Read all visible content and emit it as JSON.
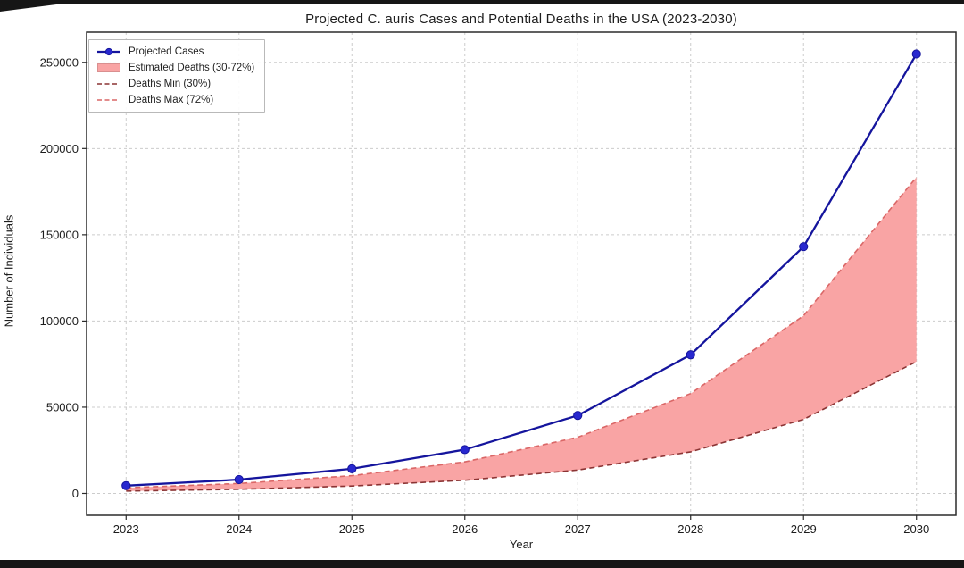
{
  "screen": {
    "background": "#ffffff",
    "edge_artifact_color": "#161616"
  },
  "chart_data": {
    "type": "line",
    "title": "Projected C. auris Cases and Potential Deaths in the USA (2023-2030)",
    "xlabel": "Year",
    "ylabel": "Number of Individuals",
    "x": [
      2023,
      2024,
      2025,
      2026,
      2027,
      2028,
      2029,
      2030
    ],
    "series": [
      {
        "name": "Projected Cases",
        "style": "solid-markers",
        "color": "#15159d",
        "marker_color": "#2828cf",
        "values": [
          4500,
          8000,
          14300,
          25400,
          45200,
          80400,
          143100,
          254800
        ]
      },
      {
        "name": "Deaths Min (30%)",
        "style": "dashed",
        "color": "#8b3434",
        "values": [
          1350,
          2400,
          4290,
          7620,
          13560,
          24120,
          42930,
          76440
        ]
      },
      {
        "name": "Deaths Max (72%)",
        "style": "dashed",
        "color": "#da6767",
        "values": [
          3240,
          5760,
          10300,
          18290,
          32540,
          57890,
          103030,
          183460
        ]
      }
    ],
    "band": {
      "name": "Estimated Deaths (30-72%)",
      "fill": "#f9a4a4",
      "edge": "#d98f8f",
      "lower_series": 1,
      "upper_series": 2
    },
    "legend": {
      "position": "upper-left",
      "entries": [
        "Projected Cases",
        "Estimated Deaths (30-72%)",
        "Deaths Min (30%)",
        "Deaths Max (72%)"
      ]
    },
    "xticks": [
      "2023",
      "2024",
      "2025",
      "2026",
      "2027",
      "2028",
      "2029",
      "2030"
    ],
    "yticks": [
      0,
      50000,
      100000,
      150000,
      200000,
      250000
    ],
    "xlim": [
      2022.65,
      2030.35
    ],
    "ylim": [
      -12700,
      267500
    ],
    "grid": true,
    "grid_color": "#cccccc",
    "spine_color": "#2b2b2b",
    "tick_color": "#2b2b2b"
  }
}
